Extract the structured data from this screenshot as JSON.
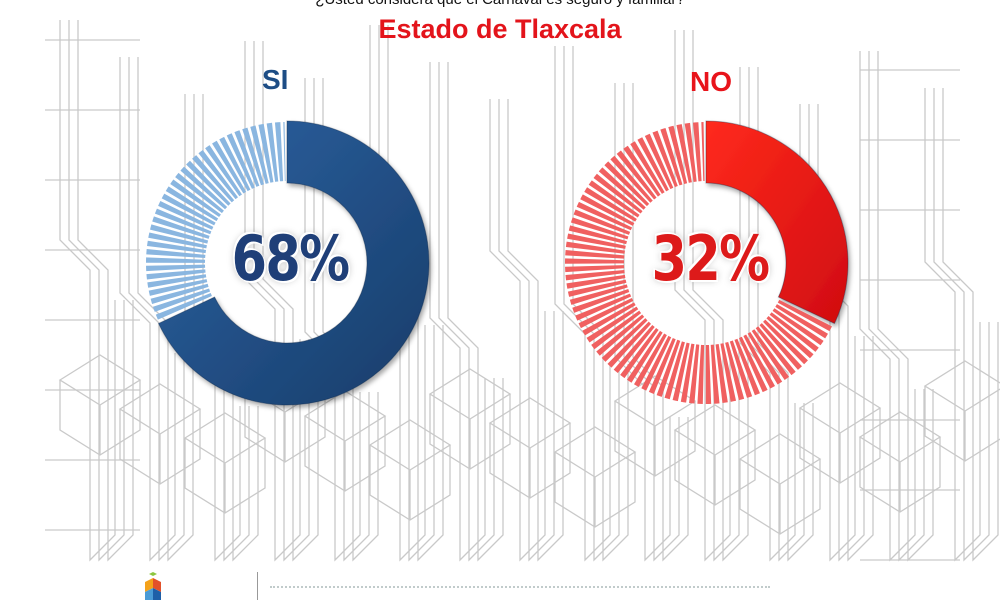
{
  "header": {
    "question": "¿Usted considera que el Carnaval es seguro y familiar?",
    "title": "Estado de Tlaxcala"
  },
  "colors": {
    "si_primary": "#1f4d84",
    "si_light": "#8ab6e0",
    "no_primary": "#e8141b",
    "no_light": "#f06060",
    "title": "#e3141b"
  },
  "chart_data": [
    {
      "type": "pie",
      "variant": "donut",
      "label": "SI",
      "value_label": "68%",
      "slices": [
        {
          "name": "SI",
          "value": 68
        },
        {
          "name": "NO",
          "value": 32
        }
      ],
      "highlight": "SI"
    },
    {
      "type": "pie",
      "variant": "donut",
      "label": "NO",
      "value_label": "32%",
      "slices": [
        {
          "name": "NO",
          "value": 32
        },
        {
          "name": "SI",
          "value": 68
        }
      ],
      "highlight": "NO"
    }
  ],
  "footer": {
    "logo_icon": "logo-icon"
  }
}
